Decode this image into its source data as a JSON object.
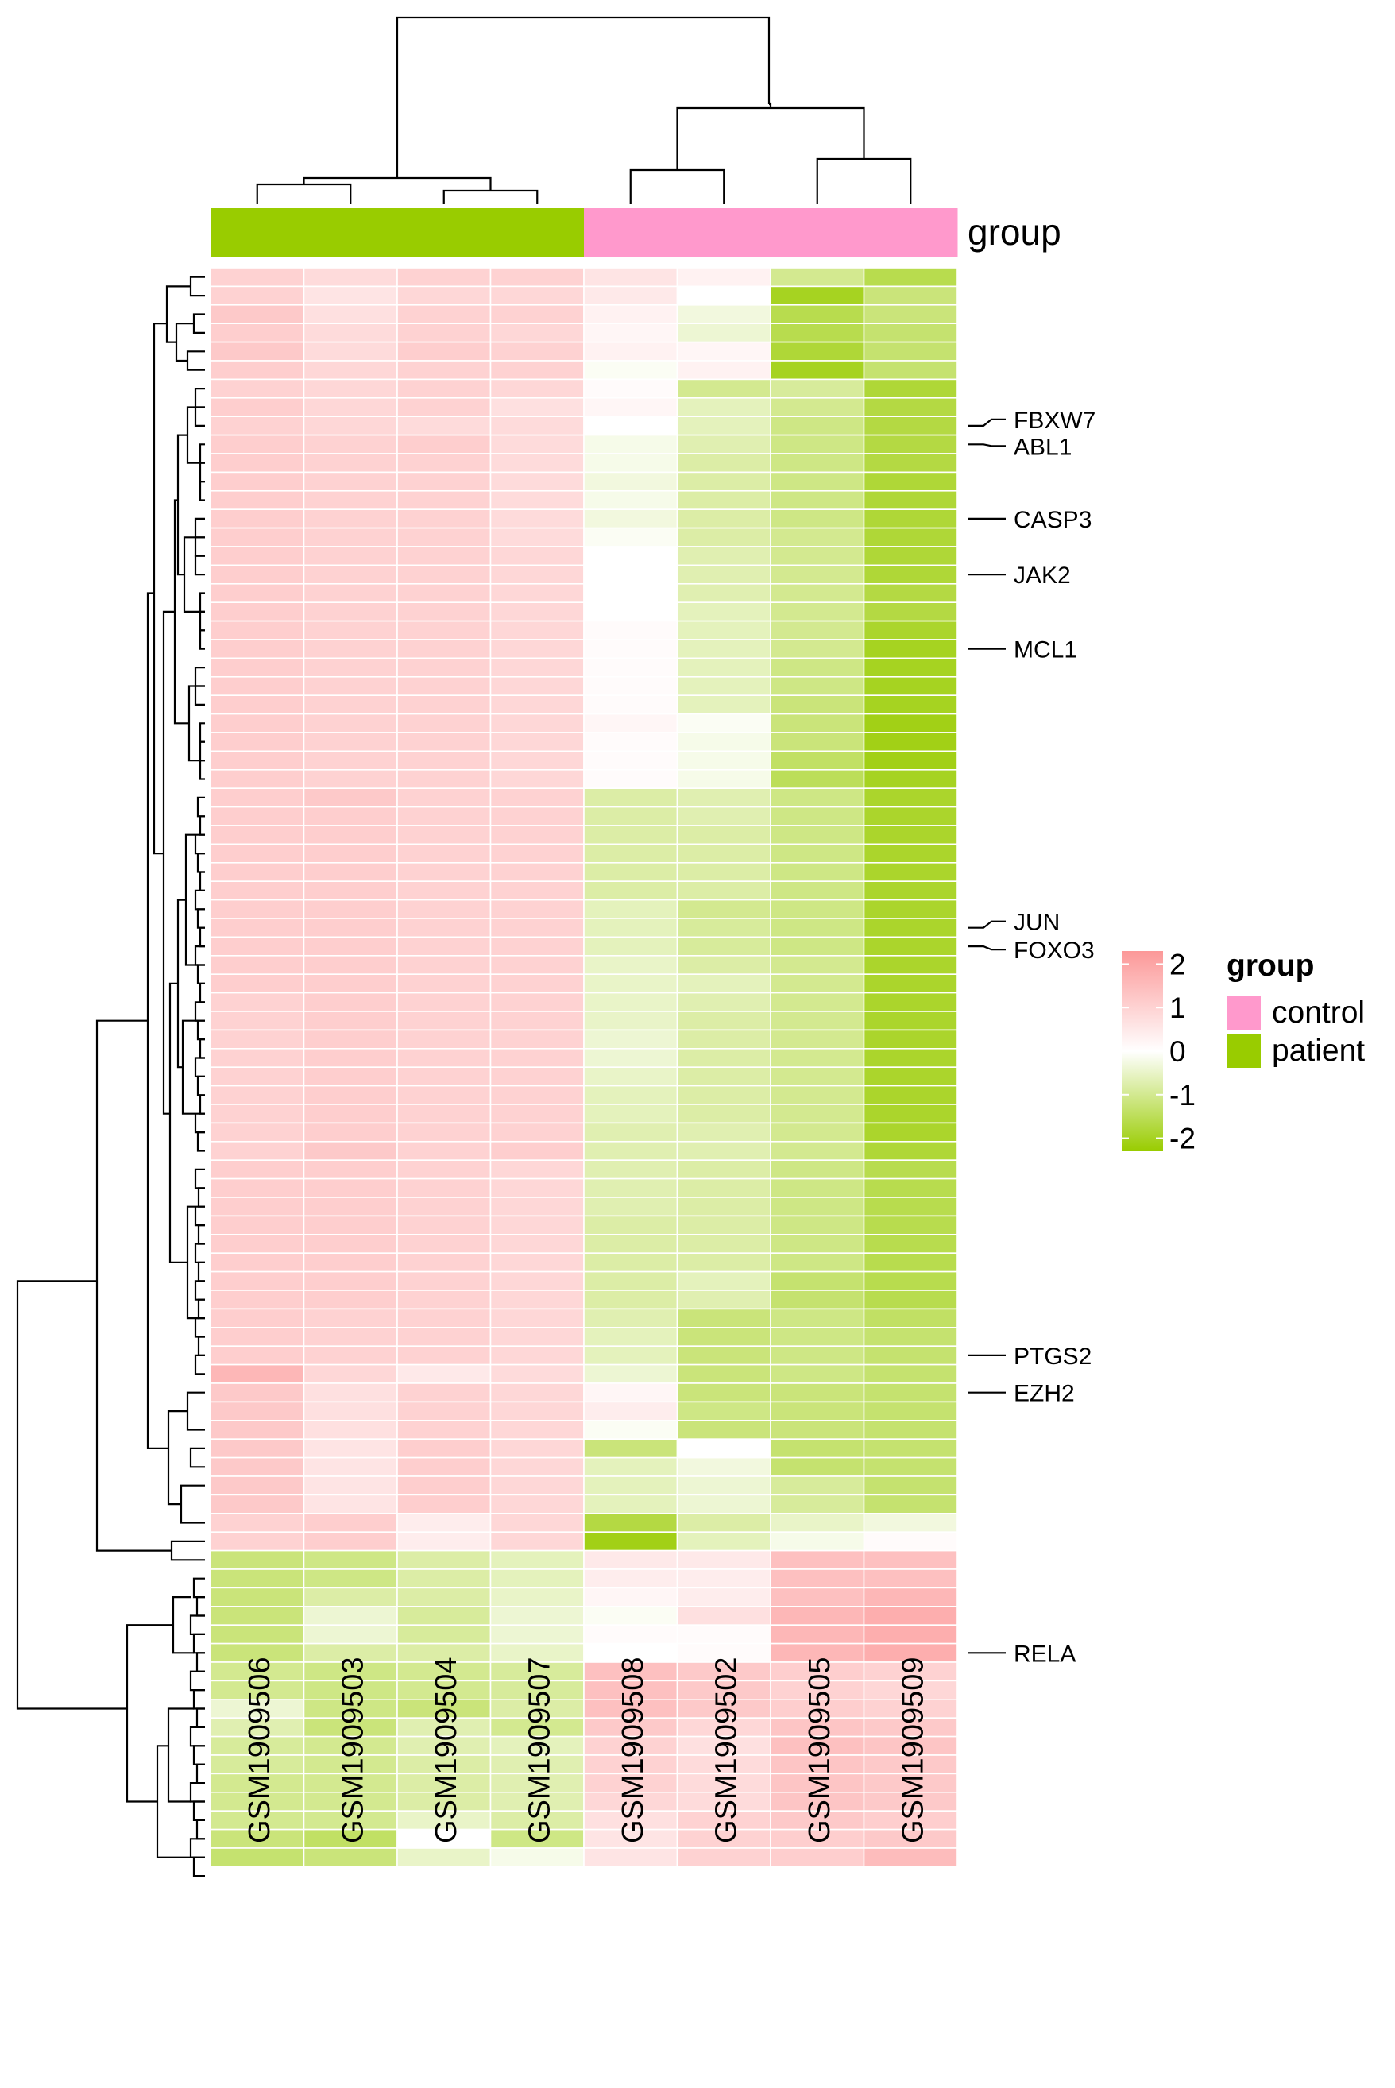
{
  "chart_data": {
    "type": "heatmap",
    "title": "",
    "annotation_title": "group",
    "columns": [
      "GSM1909506",
      "GSM1909503",
      "GSM1909504",
      "GSM1909507",
      "GSM1909508",
      "GSM1909502",
      "GSM1909505",
      "GSM1909509"
    ],
    "column_groups": [
      "patient",
      "patient",
      "patient",
      "patient",
      "control",
      "control",
      "control",
      "control"
    ],
    "legend": {
      "color_scale": {
        "ticks": [
          "2",
          "1",
          "0",
          "-1",
          "-2"
        ],
        "range": [
          -2.3,
          2.3
        ],
        "colors": {
          "high": "#fc9898",
          "mid": "#ffffff",
          "low": "#99cc00"
        }
      },
      "group": {
        "title": "group",
        "items": [
          {
            "label": "control",
            "color": "#ff99cc"
          },
          {
            "label": "patient",
            "color": "#99cc00"
          }
        ]
      }
    },
    "row_labels": [
      {
        "row": 8,
        "label": "FBXW7"
      },
      {
        "row": 9,
        "label": "ABL1"
      },
      {
        "row": 13,
        "label": "CASP3"
      },
      {
        "row": 16,
        "label": "JAK2"
      },
      {
        "row": 20,
        "label": "MCL1"
      },
      {
        "row": 35,
        "label": "JUN"
      },
      {
        "row": 36,
        "label": "FOXO3"
      },
      {
        "row": 58,
        "label": "PTGS2"
      },
      {
        "row": 60,
        "label": "EZH2"
      },
      {
        "row": 74,
        "label": "RELA"
      }
    ],
    "values": [
      [
        1.0,
        0.8,
        1.0,
        1.0,
        0.6,
        0.3,
        -1.0,
        -1.6
      ],
      [
        1.0,
        0.6,
        0.9,
        0.9,
        0.5,
        0.0,
        -2.0,
        -1.2
      ],
      [
        1.2,
        0.7,
        1.0,
        1.0,
        0.3,
        -0.3,
        -1.6,
        -1.2
      ],
      [
        1.1,
        0.8,
        1.0,
        0.9,
        0.2,
        -0.4,
        -1.6,
        -1.3
      ],
      [
        1.2,
        0.8,
        1.1,
        1.0,
        0.3,
        0.2,
        -1.8,
        -1.3
      ],
      [
        1.1,
        0.9,
        1.0,
        1.0,
        -0.1,
        0.3,
        -2.0,
        -1.3
      ],
      [
        1.0,
        0.9,
        1.0,
        0.9,
        0.1,
        -1.0,
        -0.9,
        -1.8
      ],
      [
        1.1,
        0.9,
        1.0,
        0.7,
        0.2,
        -0.6,
        -1.0,
        -1.7
      ],
      [
        1.0,
        0.9,
        0.8,
        0.8,
        0.0,
        -0.6,
        -1.1,
        -1.7
      ],
      [
        1.1,
        1.0,
        1.1,
        0.8,
        -0.2,
        -0.7,
        -1.1,
        -1.7
      ],
      [
        1.1,
        1.0,
        1.0,
        0.8,
        -0.2,
        -0.8,
        -1.1,
        -1.7
      ],
      [
        1.1,
        1.0,
        1.0,
        0.8,
        -0.3,
        -0.8,
        -1.1,
        -1.8
      ],
      [
        1.1,
        1.0,
        1.0,
        0.8,
        -0.2,
        -0.8,
        -1.1,
        -1.8
      ],
      [
        1.1,
        1.0,
        1.0,
        0.8,
        -0.3,
        -0.8,
        -1.1,
        -1.8
      ],
      [
        1.1,
        1.0,
        1.0,
        0.8,
        -0.1,
        -0.8,
        -1.0,
        -1.8
      ],
      [
        1.1,
        1.0,
        1.0,
        0.9,
        0.0,
        -0.7,
        -1.0,
        -1.8
      ],
      [
        1.1,
        1.0,
        1.0,
        0.9,
        0.0,
        -0.7,
        -1.0,
        -1.8
      ],
      [
        1.1,
        1.0,
        1.0,
        0.9,
        0.0,
        -0.7,
        -1.0,
        -1.7
      ],
      [
        1.1,
        1.0,
        1.0,
        0.9,
        0.0,
        -0.6,
        -1.0,
        -1.7
      ],
      [
        1.1,
        1.0,
        1.0,
        0.9,
        0.1,
        -0.6,
        -1.0,
        -1.9
      ],
      [
        1.1,
        1.0,
        1.0,
        0.9,
        0.1,
        -0.6,
        -1.0,
        -2.0
      ],
      [
        1.1,
        1.0,
        1.0,
        0.9,
        0.1,
        -0.6,
        -1.1,
        -2.0
      ],
      [
        1.1,
        1.0,
        1.0,
        0.9,
        0.1,
        -0.6,
        -1.1,
        -2.0
      ],
      [
        1.1,
        1.0,
        1.0,
        0.9,
        0.1,
        -0.6,
        -1.2,
        -2.0
      ],
      [
        1.1,
        1.0,
        1.0,
        0.9,
        0.2,
        -0.1,
        -1.2,
        -2.1
      ],
      [
        1.1,
        1.0,
        1.0,
        0.9,
        0.1,
        -0.2,
        -1.2,
        -2.1
      ],
      [
        1.1,
        1.0,
        1.0,
        0.9,
        0.1,
        -0.2,
        -1.4,
        -2.1
      ],
      [
        1.1,
        1.0,
        1.0,
        0.9,
        0.1,
        -0.2,
        -1.5,
        -2.0
      ],
      [
        1.1,
        1.2,
        1.0,
        1.0,
        -0.8,
        -0.7,
        -1.1,
        -1.9
      ],
      [
        1.1,
        1.1,
        1.0,
        1.0,
        -0.8,
        -0.7,
        -1.1,
        -1.9
      ],
      [
        1.1,
        1.1,
        1.0,
        1.0,
        -0.8,
        -0.8,
        -1.1,
        -1.9
      ],
      [
        1.1,
        1.1,
        1.0,
        1.0,
        -0.8,
        -0.8,
        -1.1,
        -1.9
      ],
      [
        1.1,
        1.1,
        1.0,
        1.0,
        -0.8,
        -0.8,
        -1.1,
        -1.9
      ],
      [
        1.1,
        1.1,
        1.0,
        1.0,
        -0.8,
        -0.8,
        -1.1,
        -1.9
      ],
      [
        1.1,
        1.1,
        1.0,
        1.0,
        -0.6,
        -1.0,
        -1.1,
        -1.9
      ],
      [
        1.1,
        1.1,
        1.0,
        1.0,
        -0.6,
        -0.9,
        -1.1,
        -1.9
      ],
      [
        1.1,
        1.1,
        1.0,
        1.0,
        -0.6,
        -0.9,
        -1.1,
        -1.9
      ],
      [
        1.1,
        1.1,
        1.0,
        1.0,
        -0.5,
        -0.8,
        -1.0,
        -1.9
      ],
      [
        1.1,
        1.1,
        1.0,
        1.0,
        -0.5,
        -0.6,
        -1.0,
        -1.9
      ],
      [
        1.0,
        1.1,
        1.0,
        1.0,
        -0.5,
        -0.7,
        -1.0,
        -1.9
      ],
      [
        1.0,
        1.1,
        1.0,
        1.0,
        -0.5,
        -0.8,
        -1.0,
        -1.9
      ],
      [
        1.0,
        1.1,
        1.0,
        1.0,
        -0.4,
        -0.8,
        -1.0,
        -1.9
      ],
      [
        1.0,
        1.1,
        1.0,
        1.0,
        -0.4,
        -0.8,
        -1.0,
        -1.9
      ],
      [
        1.0,
        1.1,
        1.0,
        1.0,
        -0.5,
        -0.8,
        -1.0,
        -1.9
      ],
      [
        1.0,
        1.1,
        1.0,
        1.0,
        -0.6,
        -0.8,
        -1.0,
        -1.9
      ],
      [
        1.0,
        1.1,
        1.0,
        1.0,
        -0.6,
        -0.8,
        -1.0,
        -1.9
      ],
      [
        1.0,
        1.1,
        1.0,
        1.0,
        -0.7,
        -0.7,
        -1.0,
        -1.9
      ],
      [
        1.0,
        1.2,
        1.0,
        1.1,
        -0.7,
        -0.7,
        -1.0,
        -1.8
      ],
      [
        1.1,
        1.1,
        1.0,
        0.9,
        -0.7,
        -0.8,
        -1.1,
        -1.6
      ],
      [
        1.1,
        1.1,
        1.0,
        0.9,
        -0.7,
        -0.8,
        -1.1,
        -1.6
      ],
      [
        1.1,
        1.1,
        1.0,
        0.9,
        -0.7,
        -0.8,
        -1.1,
        -1.6
      ],
      [
        1.1,
        1.1,
        1.0,
        0.9,
        -0.8,
        -0.8,
        -1.1,
        -1.6
      ],
      [
        1.1,
        1.1,
        1.0,
        0.9,
        -0.8,
        -0.8,
        -1.1,
        -1.6
      ],
      [
        1.1,
        1.1,
        1.0,
        0.9,
        -0.8,
        -0.8,
        -1.1,
        -1.6
      ],
      [
        1.1,
        1.1,
        1.0,
        0.9,
        -0.8,
        -0.6,
        -1.3,
        -1.6
      ],
      [
        1.1,
        1.1,
        1.0,
        0.9,
        -0.8,
        -0.7,
        -1.3,
        -1.6
      ],
      [
        1.1,
        1.0,
        1.0,
        0.9,
        -0.7,
        -1.2,
        -1.1,
        -1.4
      ],
      [
        1.1,
        1.0,
        1.0,
        0.9,
        -0.6,
        -1.2,
        -1.1,
        -1.3
      ],
      [
        1.1,
        1.0,
        1.0,
        0.9,
        -0.6,
        -1.2,
        -1.1,
        -1.3
      ],
      [
        1.6,
        0.9,
        0.5,
        0.8,
        -0.4,
        -1.2,
        -1.1,
        -1.3
      ],
      [
        1.2,
        0.7,
        1.0,
        0.9,
        0.2,
        -1.2,
        -1.2,
        -1.3
      ],
      [
        1.2,
        0.7,
        1.0,
        0.9,
        0.4,
        -1.1,
        -1.2,
        -1.3
      ],
      [
        1.2,
        0.7,
        1.0,
        0.9,
        -0.1,
        -1.2,
        -1.2,
        -1.3
      ],
      [
        1.2,
        0.6,
        1.1,
        0.9,
        -1.2,
        0.0,
        -1.3,
        -1.3
      ],
      [
        1.2,
        0.6,
        1.1,
        0.9,
        -0.6,
        -0.3,
        -1.3,
        -1.3
      ],
      [
        1.2,
        0.6,
        1.1,
        0.9,
        -0.6,
        -0.4,
        -0.9,
        -1.3
      ],
      [
        1.2,
        0.6,
        1.1,
        0.9,
        -0.6,
        -0.4,
        -0.9,
        -1.3
      ],
      [
        1.0,
        1.1,
        0.4,
        0.9,
        -1.7,
        -0.8,
        -0.5,
        -0.3
      ],
      [
        1.0,
        1.1,
        0.4,
        0.9,
        -2.1,
        -0.6,
        -0.2,
        0.1
      ],
      [
        -1.2,
        -1.1,
        -0.8,
        -0.6,
        0.5,
        0.5,
        1.4,
        1.4
      ],
      [
        -1.2,
        -1.1,
        -0.8,
        -0.6,
        0.4,
        0.4,
        1.4,
        1.4
      ],
      [
        -1.2,
        -0.8,
        -0.8,
        -0.5,
        0.2,
        0.4,
        1.4,
        1.6
      ],
      [
        -1.2,
        -0.4,
        -0.9,
        -0.4,
        -0.1,
        0.7,
        1.6,
        1.8
      ],
      [
        -1.2,
        -0.4,
        -0.9,
        -0.4,
        0.1,
        0.1,
        1.6,
        1.8
      ],
      [
        -1.2,
        -0.8,
        -0.8,
        -0.5,
        0.0,
        0.1,
        1.6,
        1.8
      ],
      [
        -1.0,
        -1.1,
        -1.0,
        -0.9,
        1.4,
        1.2,
        1.1,
        1.0
      ],
      [
        -1.0,
        -1.1,
        -1.0,
        -0.9,
        1.4,
        1.2,
        1.0,
        0.9
      ],
      [
        -0.4,
        -1.1,
        -1.2,
        -0.8,
        1.4,
        1.2,
        1.1,
        1.0
      ],
      [
        -0.7,
        -1.2,
        -0.7,
        -1.0,
        1.2,
        0.9,
        1.3,
        1.2
      ],
      [
        -0.9,
        -1.0,
        -0.7,
        -0.6,
        1.0,
        0.7,
        1.4,
        1.3
      ],
      [
        -0.9,
        -1.0,
        -0.8,
        -0.7,
        1.0,
        0.8,
        1.3,
        1.2
      ],
      [
        -1.0,
        -1.0,
        -0.8,
        -0.7,
        1.0,
        0.8,
        1.3,
        1.2
      ],
      [
        -1.0,
        -1.0,
        -0.8,
        -0.7,
        0.9,
        0.8,
        1.3,
        1.2
      ],
      [
        -1.0,
        -1.0,
        -0.5,
        -0.8,
        0.7,
        1.0,
        1.2,
        1.1
      ],
      [
        -1.2,
        -1.4,
        0.0,
        -1.1,
        0.6,
        1.0,
        1.1,
        1.2
      ],
      [
        -1.3,
        -1.2,
        -0.5,
        -0.2,
        0.6,
        1.0,
        1.1,
        1.5
      ]
    ]
  }
}
